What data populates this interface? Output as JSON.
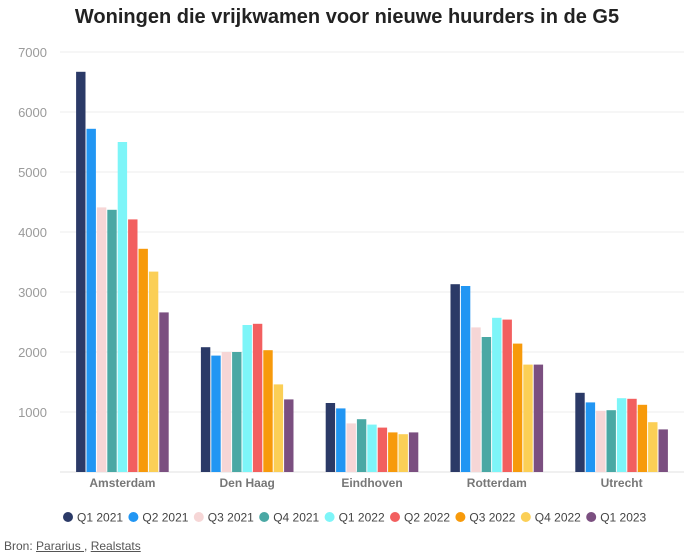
{
  "chart_data": {
    "type": "bar",
    "title": "Woningen die vrijkwamen voor nieuwe huurders in de G5",
    "xlabel": "",
    "ylabel": "",
    "ylim": [
      0,
      7000
    ],
    "yticks": [
      "1000",
      "2000",
      "3000",
      "4000",
      "5000",
      "6000",
      "7000"
    ],
    "categories": [
      "Amsterdam",
      "Den Haag",
      "Eindhoven",
      "Rotterdam",
      "Utrecht"
    ],
    "grid": true,
    "legend_position": "bottom",
    "series": [
      {
        "name": "Q1 2021",
        "color": "#2b3a67",
        "values": [
          6670,
          2080,
          1150,
          3130,
          1320
        ]
      },
      {
        "name": "Q2 2021",
        "color": "#2196f3",
        "values": [
          5720,
          1940,
          1060,
          3100,
          1160
        ]
      },
      {
        "name": "Q3 2021",
        "color": "#f6d6d6",
        "values": [
          4410,
          2000,
          810,
          2410,
          1020
        ]
      },
      {
        "name": "Q4 2021",
        "color": "#4aa8a4",
        "values": [
          4370,
          2000,
          880,
          2250,
          1030
        ]
      },
      {
        "name": "Q1 2022",
        "color": "#7df5f8",
        "values": [
          5500,
          2450,
          790,
          2570,
          1230
        ]
      },
      {
        "name": "Q2 2022",
        "color": "#f25f5f",
        "values": [
          4210,
          2470,
          740,
          2540,
          1220
        ]
      },
      {
        "name": "Q3 2022",
        "color": "#f79a0b",
        "values": [
          3720,
          2030,
          660,
          2140,
          1120
        ]
      },
      {
        "name": "Q4 2022",
        "color": "#fbcf56",
        "values": [
          3340,
          1460,
          630,
          1790,
          830
        ]
      },
      {
        "name": "Q1 2023",
        "color": "#7b4f80",
        "values": [
          2660,
          1210,
          660,
          1790,
          710
        ]
      }
    ]
  },
  "source": {
    "prefix": "Bron: ",
    "link1": "Pararius ",
    "separator": ", ",
    "link2": "Realstats"
  }
}
